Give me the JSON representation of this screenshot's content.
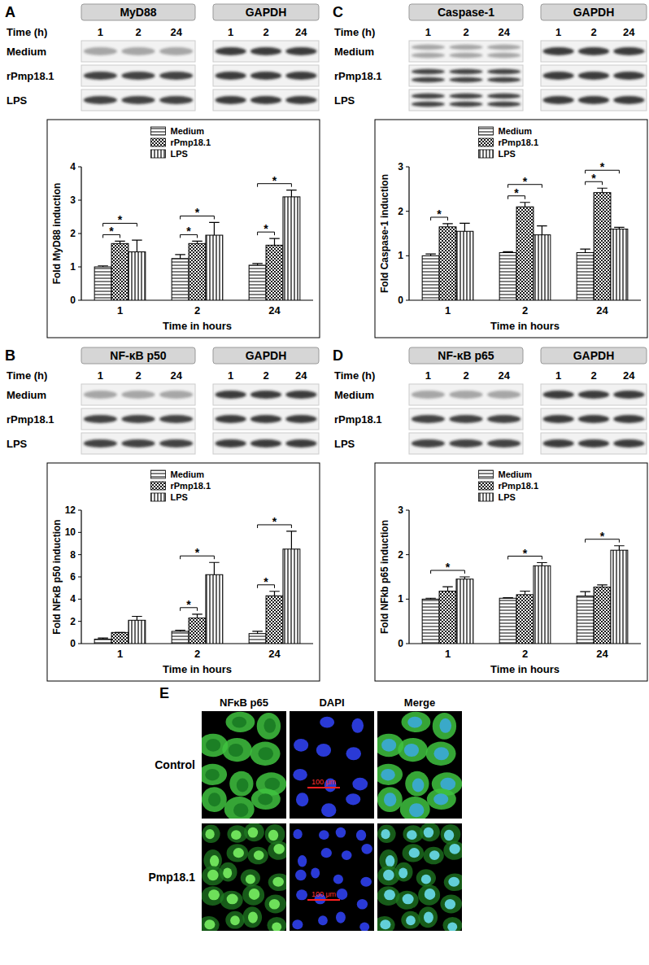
{
  "chart_data": [
    {
      "type": "bar",
      "x_label": "Time in hours",
      "y_label": "Fold MyD88 induction",
      "categories": [
        "1",
        "2",
        "24"
      ],
      "series": [
        {
          "name": "Medium",
          "color": "#000000",
          "values": [
            1.0,
            1.25,
            1.05
          ],
          "errors": [
            0.03,
            0.12,
            0.05
          ]
        },
        {
          "name": "rPmp18.1",
          "color": "#000000",
          "values": [
            1.7,
            1.7,
            1.65
          ],
          "errors": [
            0.07,
            0.07,
            0.2
          ]
        },
        {
          "name": "LPS",
          "color": "#000000",
          "values": [
            1.45,
            1.95,
            3.1
          ],
          "errors": [
            0.35,
            0.38,
            0.2
          ]
        }
      ],
      "ylim": [
        0,
        4
      ],
      "yticks": [
        0,
        1,
        2,
        3,
        4
      ],
      "legend": "top",
      "significance": [
        {
          "category": 0,
          "from": 0,
          "to": 1,
          "label": "*"
        },
        {
          "category": 0,
          "from": 0,
          "to": 2,
          "label": "*"
        },
        {
          "category": 1,
          "from": 0,
          "to": 1,
          "label": "*"
        },
        {
          "category": 1,
          "from": 0,
          "to": 2,
          "label": "*"
        },
        {
          "category": 2,
          "from": 0,
          "to": 1,
          "label": "*"
        },
        {
          "category": 2,
          "from": 0,
          "to": 2,
          "label": "*"
        }
      ]
    },
    {
      "type": "bar",
      "x_label": "Time in hours",
      "y_label": "Fold NFκB p50 induction",
      "categories": [
        "1",
        "2",
        "24"
      ],
      "series": [
        {
          "name": "Medium",
          "color": "#000000",
          "values": [
            0.4,
            1.1,
            0.9
          ],
          "errors": [
            0.1,
            0.1,
            0.2
          ]
        },
        {
          "name": "rPmp18.1",
          "color": "#000000",
          "values": [
            1.0,
            2.3,
            4.3
          ],
          "errors": [
            0.0,
            0.35,
            0.4
          ]
        },
        {
          "name": "LPS",
          "color": "#000000",
          "values": [
            2.1,
            6.2,
            8.5
          ],
          "errors": [
            0.35,
            1.1,
            1.6
          ]
        }
      ],
      "ylim": [
        0,
        12
      ],
      "yticks": [
        0,
        2,
        4,
        6,
        8,
        10,
        12
      ],
      "legend": "top",
      "significance": [
        {
          "category": 1,
          "from": 0,
          "to": 1,
          "label": "*"
        },
        {
          "category": 1,
          "from": 0,
          "to": 2,
          "label": "*"
        },
        {
          "category": 2,
          "from": 0,
          "to": 1,
          "label": "*"
        },
        {
          "category": 2,
          "from": 0,
          "to": 2,
          "label": "*"
        }
      ]
    },
    {
      "type": "bar",
      "x_label": "Time in hours",
      "y_label": "Fold Caspase-1 induction",
      "categories": [
        "1",
        "2",
        "24"
      ],
      "series": [
        {
          "name": "Medium",
          "color": "#000000",
          "values": [
            1.0,
            1.07,
            1.07
          ],
          "errors": [
            0.04,
            0.02,
            0.08
          ]
        },
        {
          "name": "rPmp18.1",
          "color": "#000000",
          "values": [
            1.65,
            2.1,
            2.42
          ],
          "errors": [
            0.07,
            0.1,
            0.1
          ]
        },
        {
          "name": "LPS",
          "color": "#000000",
          "values": [
            1.55,
            1.47,
            1.6
          ],
          "errors": [
            0.18,
            0.2,
            0.04
          ]
        }
      ],
      "ylim": [
        0,
        3
      ],
      "yticks": [
        0,
        1,
        2,
        3
      ],
      "legend": "top",
      "significance": [
        {
          "category": 0,
          "from": 0,
          "to": 1,
          "label": "*"
        },
        {
          "category": 1,
          "from": 0,
          "to": 1,
          "label": "*"
        },
        {
          "category": 1,
          "from": 0,
          "to": 2,
          "label": "*"
        },
        {
          "category": 2,
          "from": 0,
          "to": 1,
          "label": "*"
        },
        {
          "category": 2,
          "from": 0,
          "to": 2,
          "label": "*"
        }
      ]
    },
    {
      "type": "bar",
      "x_label": "Time in hours",
      "y_label": "Fold NFkb p65 induction",
      "categories": [
        "1",
        "2",
        "24"
      ],
      "series": [
        {
          "name": "Medium",
          "color": "#000000",
          "values": [
            1.0,
            1.02,
            1.07
          ],
          "errors": [
            0.02,
            0.01,
            0.1
          ]
        },
        {
          "name": "rPmp18.1",
          "color": "#000000",
          "values": [
            1.18,
            1.1,
            1.27
          ],
          "errors": [
            0.1,
            0.08,
            0.05
          ]
        },
        {
          "name": "LPS",
          "color": "#000000",
          "values": [
            1.45,
            1.75,
            2.1
          ],
          "errors": [
            0.05,
            0.07,
            0.1
          ]
        }
      ],
      "ylim": [
        0,
        3
      ],
      "yticks": [
        0,
        1,
        2,
        3
      ],
      "legend": "top",
      "significance": [
        {
          "category": 0,
          "from": 0,
          "to": 2,
          "label": "*"
        },
        {
          "category": 1,
          "from": 0,
          "to": 2,
          "label": "*"
        },
        {
          "category": 2,
          "from": 0,
          "to": 2,
          "label": "*"
        }
      ]
    }
  ],
  "panels": [
    {
      "label": "A",
      "blot": {
        "target": "MyD88",
        "control": "GAPDH",
        "time_label": "Time (h)",
        "times": [
          "1",
          "2",
          "24"
        ],
        "rows": [
          "Medium",
          "rPmp18.1",
          "LPS"
        ]
      }
    },
    {
      "label": "B",
      "blot": {
        "target": "NF-κB p50",
        "control": "GAPDH",
        "time_label": "Time (h)",
        "times": [
          "1",
          "2",
          "24"
        ],
        "rows": [
          "Medium",
          "rPmp18.1",
          "LPS"
        ]
      }
    },
    {
      "label": "C",
      "blot": {
        "target": "Caspase-1",
        "control": "GAPDH",
        "time_label": "Time (h)",
        "times": [
          "1",
          "2",
          "24"
        ],
        "rows": [
          "Medium",
          "rPmp18.1",
          "LPS"
        ]
      }
    },
    {
      "label": "D",
      "blot": {
        "target": "NF-κB p65",
        "control": "GAPDH",
        "time_label": "Time (h)",
        "times": [
          "1",
          "2",
          "24"
        ],
        "rows": [
          "Medium",
          "rPmp18.1",
          "LPS"
        ]
      }
    }
  ],
  "panel_e": {
    "label": "E",
    "columns": [
      "NFκB p65",
      "DAPI",
      "Merge"
    ],
    "rows": [
      "Control",
      "Pmp18.1"
    ],
    "scale_bar": "100 μm"
  }
}
